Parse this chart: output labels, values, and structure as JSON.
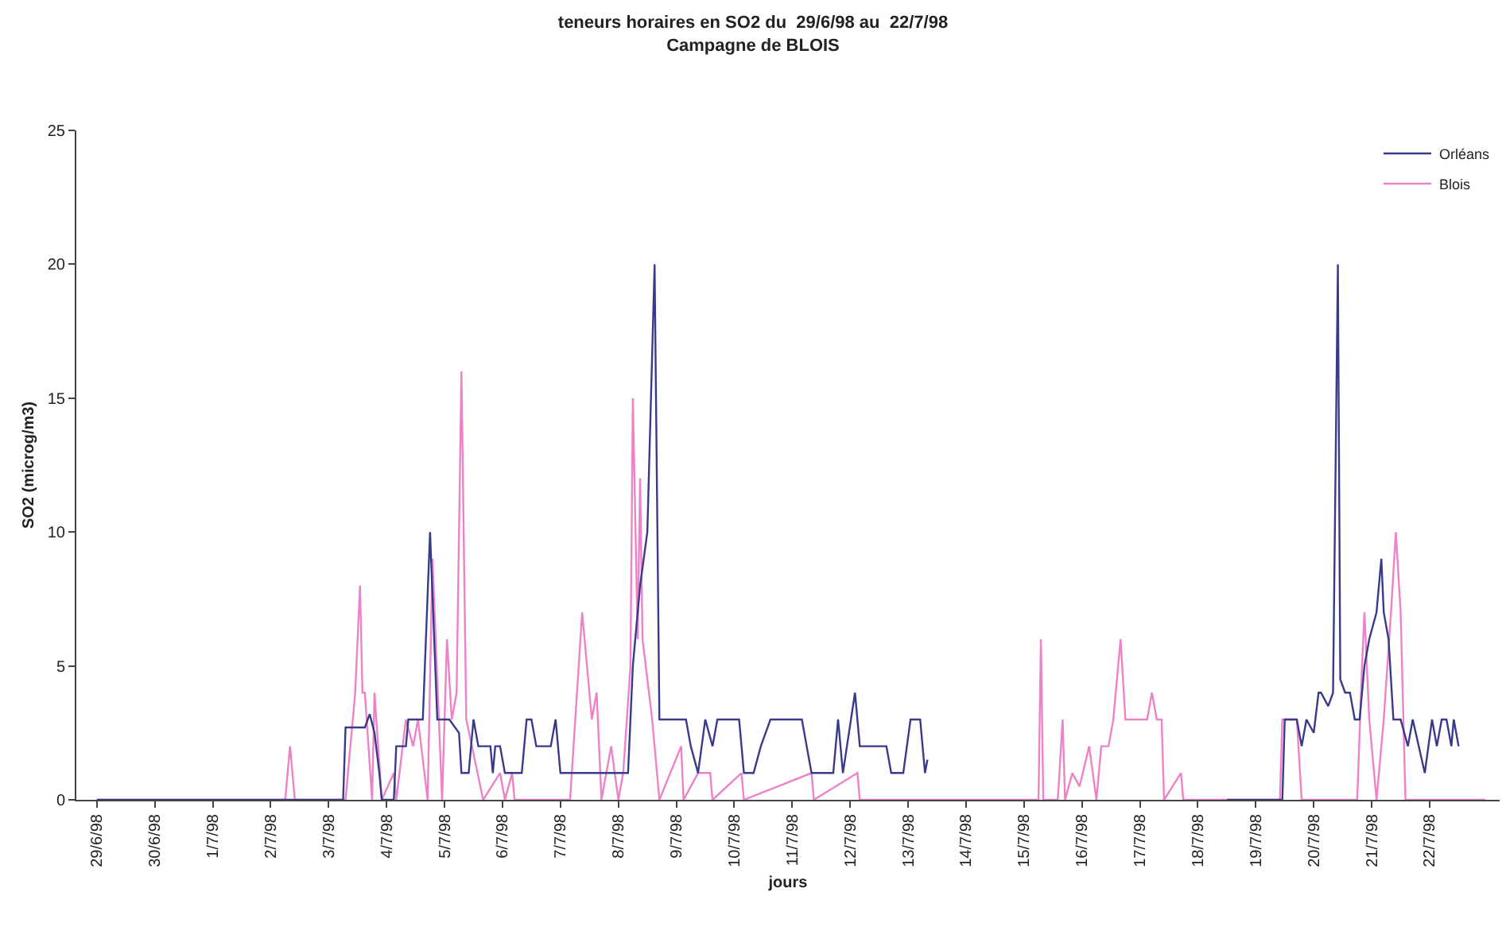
{
  "chart_data": {
    "type": "line",
    "title": "teneurs horaires en SO2 du  29/6/98 au  22/7/98\nCampagne de BLOIS",
    "xlabel": "jours",
    "ylabel": "SO2 (microg/m3)",
    "xlim": [
      "1998-06-28T15:30",
      "1998-07-23T05:00"
    ],
    "xticks": [
      {
        "value": "1998-06-29",
        "label": "29/6/98"
      },
      {
        "value": "1998-06-30",
        "label": "30/6/98"
      },
      {
        "value": "1998-07-01",
        "label": "1/7/98"
      },
      {
        "value": "1998-07-02",
        "label": "2/7/98"
      },
      {
        "value": "1998-07-03",
        "label": "3/7/98"
      },
      {
        "value": "1998-07-04",
        "label": "4/7/98"
      },
      {
        "value": "1998-07-05",
        "label": "5/7/98"
      },
      {
        "value": "1998-07-06",
        "label": "6/7/98"
      },
      {
        "value": "1998-07-07",
        "label": "7/7/98"
      },
      {
        "value": "1998-07-08",
        "label": "8/7/98"
      },
      {
        "value": "1998-07-09",
        "label": "9/7/98"
      },
      {
        "value": "1998-07-10",
        "label": "10/7/98"
      },
      {
        "value": "1998-07-11",
        "label": "11/7/98"
      },
      {
        "value": "1998-07-12",
        "label": "12/7/98"
      },
      {
        "value": "1998-07-13",
        "label": "13/7/98"
      },
      {
        "value": "1998-07-14",
        "label": "14/7/98"
      },
      {
        "value": "1998-07-15",
        "label": "15/7/98"
      },
      {
        "value": "1998-07-16",
        "label": "16/7/98"
      },
      {
        "value": "1998-07-17",
        "label": "17/7/98"
      },
      {
        "value": "1998-07-18",
        "label": "18/7/98"
      },
      {
        "value": "1998-07-19",
        "label": "19/7/98"
      },
      {
        "value": "1998-07-20",
        "label": "20/7/98"
      },
      {
        "value": "1998-07-21",
        "label": "21/7/98"
      },
      {
        "value": "1998-07-22",
        "label": "22/7/98"
      }
    ],
    "ylim": [
      0,
      25
    ],
    "yticks": [
      0,
      5,
      10,
      15,
      20,
      25
    ],
    "legend": "top right",
    "marker": "none",
    "line_style": "solid",
    "series": [
      {
        "name": "Orléans",
        "color": "#3a3a8c",
        "x": [
          "1998-06-29T00:00",
          "1998-07-03T06:00",
          "1998-07-03T07:00",
          "1998-07-03T15:00",
          "1998-07-03T17:00",
          "1998-07-03T19:00",
          "1998-07-03T21:00",
          "1998-07-03T22:00",
          "1998-07-04T03:00",
          "1998-07-04T04:00",
          "1998-07-04T08:00",
          "1998-07-04T09:00",
          "1998-07-04T15:00",
          "1998-07-04T18:00",
          "1998-07-04T21:00",
          "1998-07-05T02:00",
          "1998-07-05T06:00",
          "1998-07-05T07:00",
          "1998-07-05T10:00",
          "1998-07-05T11:00",
          "1998-07-05T12:00",
          "1998-07-05T14:00",
          "1998-07-05T19:00",
          "1998-07-05T20:00",
          "1998-07-05T21:00",
          "1998-07-05T23:00",
          "1998-07-06T01:00",
          "1998-07-06T08:00",
          "1998-07-06T10:00",
          "1998-07-06T12:00",
          "1998-07-06T14:00",
          "1998-07-06T20:00",
          "1998-07-06T22:00",
          "1998-07-07T00:00",
          "1998-07-07T06:00",
          "1998-07-08T04:00",
          "1998-07-08T05:00",
          "1998-07-08T06:00",
          "1998-07-08T09:00",
          "1998-07-08T12:00",
          "1998-07-08T15:00",
          "1998-07-08T17:00",
          "1998-07-09T04:00",
          "1998-07-09T06:00",
          "1998-07-09T09:00",
          "1998-07-09T12:00",
          "1998-07-09T15:00",
          "1998-07-09T17:00",
          "1998-07-10T02:00",
          "1998-07-10T04:00",
          "1998-07-10T08:00",
          "1998-07-10T11:00",
          "1998-07-10T15:00",
          "1998-07-11T04:00",
          "1998-07-11T08:00",
          "1998-07-11T17:00",
          "1998-07-11T19:00",
          "1998-07-11T21:00",
          "1998-07-12T02:00",
          "1998-07-12T04:00",
          "1998-07-12T10:00",
          "1998-07-12T15:00",
          "1998-07-12T17:00",
          "1998-07-12T22:00",
          "1998-07-13T01:00",
          "1998-07-13T05:00",
          "1998-07-13T07:00",
          "1998-07-13T08:00",
          "1998-07-13T12:00",
          "1998-07-18T12:00",
          "1998-07-19T11:00",
          "1998-07-19T12:00",
          "1998-07-19T17:00",
          "1998-07-19T19:00",
          "1998-07-19T21:00",
          "1998-07-20T00:00",
          "1998-07-20T02:00",
          "1998-07-20T03:00",
          "1998-07-20T06:00",
          "1998-07-20T08:00",
          "1998-07-20T10:00",
          "1998-07-20T11:00",
          "1998-07-20T13:00",
          "1998-07-20T15:00",
          "1998-07-20T17:00",
          "1998-07-20T19:00",
          "1998-07-20T21:00",
          "1998-07-20T23:00",
          "1998-07-21T02:00",
          "1998-07-21T04:00",
          "1998-07-21T05:00",
          "1998-07-21T07:00",
          "1998-07-21T09:00",
          "1998-07-21T12:00",
          "1998-07-21T15:00",
          "1998-07-21T17:00",
          "1998-07-21T22:00",
          "1998-07-22T01:00",
          "1998-07-22T03:00",
          "1998-07-22T05:00",
          "1998-07-22T07:00",
          "1998-07-22T09:00",
          "1998-07-22T10:00",
          "1998-07-22T12:00"
        ],
        "values": [
          0,
          0,
          2.7,
          2.7,
          3.2,
          2.5,
          1,
          0,
          0,
          2,
          2,
          3,
          3,
          10,
          3,
          3,
          2.5,
          1,
          1,
          2,
          3,
          2,
          2,
          1,
          2,
          2,
          1,
          1,
          3,
          3,
          2,
          2,
          3,
          1,
          1,
          1,
          3,
          5,
          8,
          10,
          20,
          3,
          3,
          2,
          1,
          3,
          2,
          3,
          3,
          1,
          1,
          2,
          3,
          3,
          1,
          1,
          3,
          1,
          4,
          2,
          2,
          2,
          1,
          1,
          3,
          3,
          1,
          1.5,
          null,
          0,
          0,
          3,
          3,
          2,
          3,
          2.5,
          4,
          4,
          3.5,
          4,
          20,
          4.5,
          4,
          4,
          3,
          3,
          5,
          6,
          7,
          9,
          7,
          6,
          3,
          3,
          2,
          3,
          1,
          3,
          2,
          3,
          3,
          2,
          3,
          2
        ]
      },
      {
        "name": "Blois",
        "color": "#ee82c8",
        "x": [
          "1998-06-29T00:00",
          "1998-07-02T06:00",
          "1998-07-02T08:00",
          "1998-07-02T10:00",
          "1998-07-03T07:00",
          "1998-07-03T11:00",
          "1998-07-03T13:00",
          "1998-07-03T14:00",
          "1998-07-03T15:00",
          "1998-07-03T18:00",
          "1998-07-03T19:00",
          "1998-07-03T22:00",
          "1998-07-04T03:00",
          "1998-07-04T04:00",
          "1998-07-04T08:00",
          "1998-07-04T11:00",
          "1998-07-04T13:00",
          "1998-07-04T17:00",
          "1998-07-04T19:00",
          "1998-07-04T23:00",
          "1998-07-05T01:00",
          "1998-07-05T03:00",
          "1998-07-05T05:00",
          "1998-07-05T07:00",
          "1998-07-05T09:00",
          "1998-07-05T16:00",
          "1998-07-05T23:00",
          "1998-07-06T01:00",
          "1998-07-06T04:00",
          "1998-07-06T05:00",
          "1998-07-07T04:00",
          "1998-07-07T09:00",
          "1998-07-07T13:00",
          "1998-07-07T15:00",
          "1998-07-07T17:00",
          "1998-07-07T21:00",
          "1998-07-08T00:00",
          "1998-07-08T02:00",
          "1998-07-08T05:00",
          "1998-07-08T06:00",
          "1998-07-08T08:00",
          "1998-07-08T09:00",
          "1998-07-08T10:00",
          "1998-07-08T14:00",
          "1998-07-08T17:00",
          "1998-07-09T02:00",
          "1998-07-09T03:00",
          "1998-07-09T09:00",
          "1998-07-09T14:00",
          "1998-07-09T15:00",
          "1998-07-10T03:00",
          "1998-07-10T04:00",
          "1998-07-11T08:00",
          "1998-07-11T09:00",
          "1998-07-12T03:00",
          "1998-07-12T04:00",
          "1998-07-15T06:00",
          "1998-07-15T07:00",
          "1998-07-15T08:00",
          "1998-07-15T14:00",
          "1998-07-15T16:00",
          "1998-07-15T17:00",
          "1998-07-15T20:00",
          "1998-07-15T23:00",
          "1998-07-16T03:00",
          "1998-07-16T06:00",
          "1998-07-16T08:00",
          "1998-07-16T11:00",
          "1998-07-16T13:00",
          "1998-07-16T16:00",
          "1998-07-16T18:00",
          "1998-07-16T22:00",
          "1998-07-17T03:00",
          "1998-07-17T05:00",
          "1998-07-17T07:00",
          "1998-07-17T09:00",
          "1998-07-17T10:00",
          "1998-07-17T17:00",
          "1998-07-17T18:00",
          "1998-07-19T10:00",
          "1998-07-19T11:00",
          "1998-07-19T17:00",
          "1998-07-19T19:00",
          "1998-07-20T18:00",
          "1998-07-20T20:00",
          "1998-07-20T21:00",
          "1998-07-20T23:00",
          "1998-07-21T02:00",
          "1998-07-21T05:00",
          "1998-07-21T08:00",
          "1998-07-21T10:00",
          "1998-07-21T12:00",
          "1998-07-21T14:00",
          "1998-07-22T23:00"
        ],
        "values": [
          0,
          0,
          2,
          0,
          0,
          4,
          8,
          4,
          4,
          0,
          4,
          0,
          1,
          0,
          3,
          2,
          3,
          0,
          9,
          0,
          6,
          3,
          4,
          16,
          3,
          0,
          1,
          0,
          1,
          0,
          0,
          7,
          3,
          4,
          0,
          2,
          0,
          1,
          5,
          15,
          6,
          12,
          6,
          3,
          0,
          2,
          0,
          1,
          1,
          0,
          1,
          0,
          1,
          0,
          1,
          0,
          0,
          6,
          0,
          0,
          3,
          0,
          1,
          0.5,
          2,
          0,
          2,
          2,
          3,
          6,
          3,
          3,
          3,
          4,
          3,
          3,
          0,
          1,
          0,
          0,
          3,
          3,
          0,
          0,
          5,
          7,
          3,
          0,
          3,
          7,
          10,
          7,
          0,
          0
        ]
      }
    ]
  }
}
